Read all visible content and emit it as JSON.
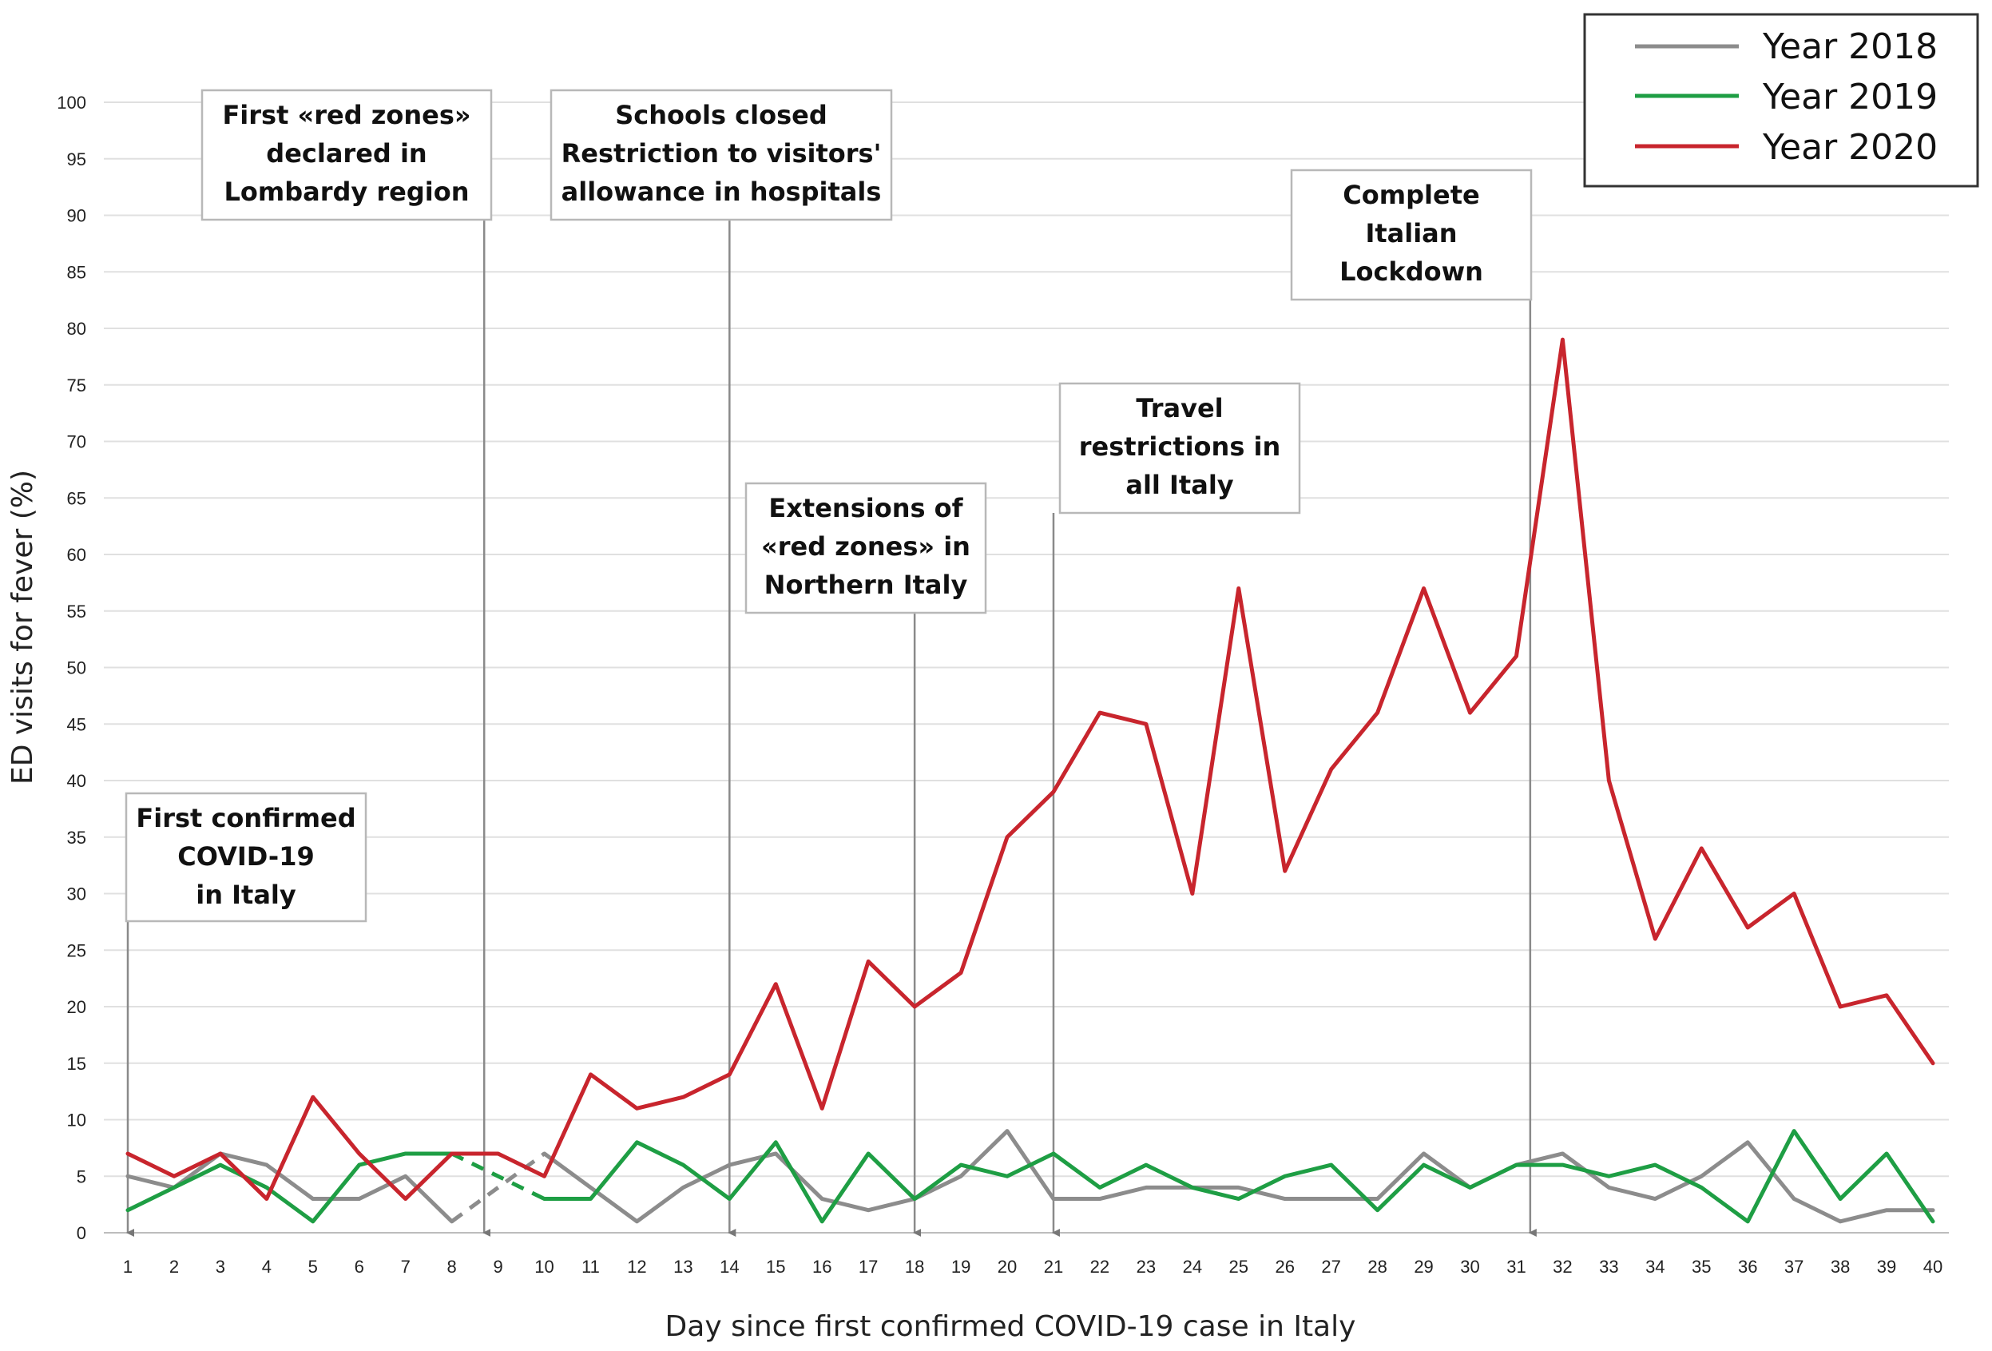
{
  "chart_data": {
    "type": "line",
    "title": "",
    "xlabel": "Day since first confirmed COVID-19 case in Italy",
    "ylabel": "ED visits for fever (%)",
    "ylim": [
      0,
      100
    ],
    "yticks": [
      0,
      5,
      10,
      15,
      20,
      25,
      30,
      35,
      40,
      45,
      50,
      55,
      60,
      65,
      70,
      75,
      80,
      85,
      90,
      95,
      100
    ],
    "x": [
      1,
      2,
      3,
      4,
      5,
      6,
      7,
      8,
      9,
      10,
      11,
      12,
      13,
      14,
      15,
      16,
      17,
      18,
      19,
      20,
      21,
      22,
      23,
      24,
      25,
      26,
      27,
      28,
      29,
      30,
      31,
      32,
      33,
      34,
      35,
      36,
      37,
      38,
      39,
      40
    ],
    "grid": true,
    "legend_position": "top-right",
    "series": [
      {
        "name": "Year 2018",
        "color": "#8c8c8c",
        "gap_after_day": 8,
        "values": [
          5,
          4,
          7,
          6,
          3,
          3,
          5,
          1,
          null,
          7,
          4,
          1,
          4,
          6,
          7,
          3,
          2,
          3,
          5,
          9,
          3,
          3,
          4,
          4,
          4,
          3,
          3,
          3,
          7,
          4,
          6,
          7,
          4,
          3,
          5,
          8,
          3,
          1,
          2,
          2
        ]
      },
      {
        "name": "Year 2019",
        "color": "#1e9e44",
        "gap_after_day": 8,
        "values": [
          2,
          4,
          6,
          4,
          1,
          6,
          7,
          7,
          null,
          3,
          3,
          8,
          6,
          3,
          8,
          1,
          7,
          3,
          6,
          5,
          7,
          4,
          6,
          4,
          3,
          5,
          6,
          2,
          6,
          4,
          6,
          6,
          5,
          6,
          4,
          1,
          9,
          3,
          7,
          1
        ]
      },
      {
        "name": "Year 2020",
        "color": "#c8252d",
        "values": [
          7,
          5,
          7,
          3,
          12,
          7,
          3,
          7,
          7,
          5,
          14,
          11,
          12,
          14,
          22,
          11,
          24,
          20,
          23,
          35,
          39,
          46,
          45,
          30,
          57,
          32,
          41,
          46,
          57,
          46,
          51,
          79,
          40,
          26,
          34,
          27,
          30,
          20,
          21,
          15
        ]
      }
    ],
    "annotations": [
      {
        "day": 1,
        "lines": [
          "First confirmed",
          "COVID-19",
          "in Italy"
        ]
      },
      {
        "day": 8.7,
        "lines": [
          "First «red zones»",
          "declared in",
          "Lombardy region"
        ]
      },
      {
        "day": 14,
        "lines": [
          "Schools closed",
          "Restriction to visitors'",
          "allowance  in hospitals"
        ]
      },
      {
        "day": 18,
        "lines": [
          "Extensions of",
          "«red zones» in",
          "Northern Italy"
        ]
      },
      {
        "day": 21,
        "lines": [
          "Travel",
          "restrictions in",
          "all Italy"
        ]
      },
      {
        "day": 31.3,
        "lines": [
          "Complete",
          "Italian",
          "Lockdown"
        ]
      }
    ]
  }
}
